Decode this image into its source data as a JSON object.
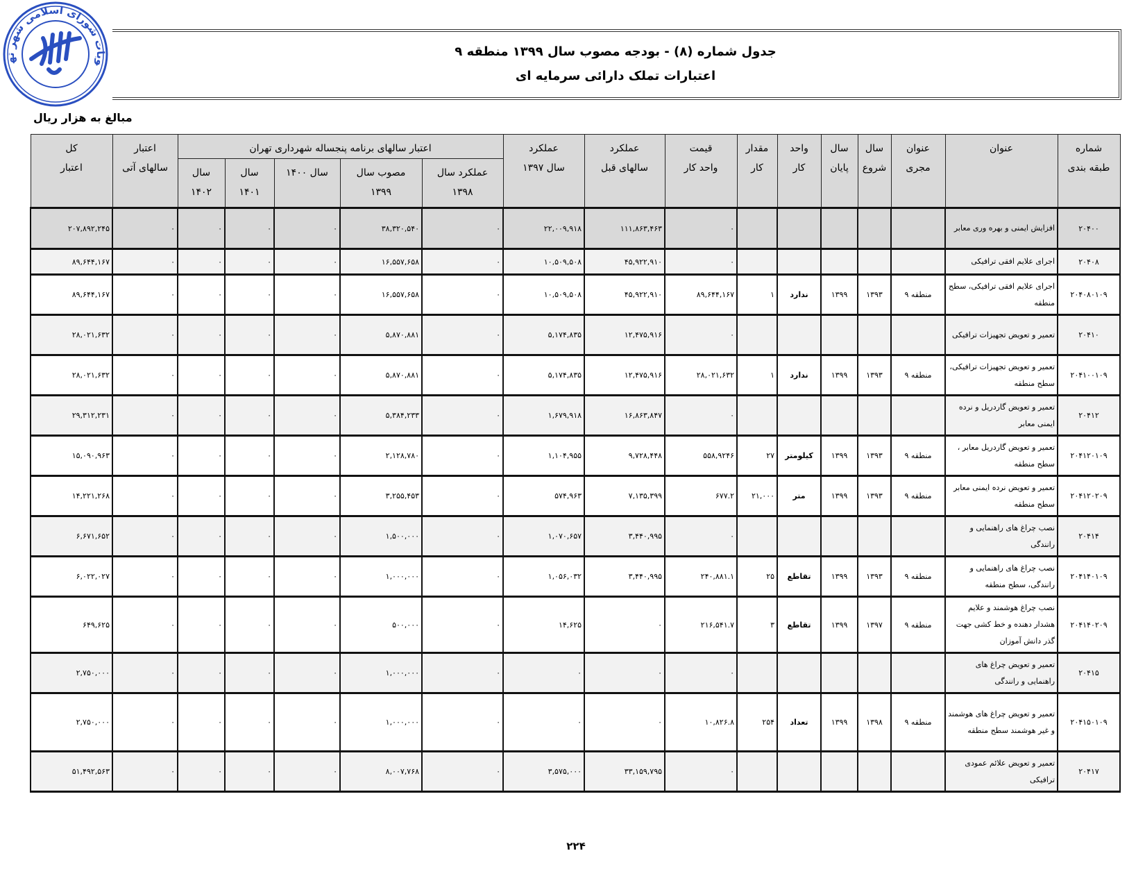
{
  "seal": {
    "text": "مصوبات شورای اسلامی شهر تهران",
    "color": "#2a4fc0"
  },
  "header": {
    "title": "جدول شماره (۸) - بودجه مصوب سال ۱۳۹۹ منطقه ۹",
    "subtitle": "اعتبارات تملک دارائی سرمایه ای"
  },
  "unit_note": "مبالغ به هزار ریال",
  "table": {
    "columns": {
      "code": [
        "شماره",
        "طبقه بندی"
      ],
      "title": [
        "",
        "عنوان"
      ],
      "executor": [
        "عنوان",
        "مجری"
      ],
      "start": [
        "سال",
        "شروع"
      ],
      "end": [
        "سال",
        "پایان"
      ],
      "unit": [
        "واحد",
        "کار"
      ],
      "qty": [
        "مقدار",
        "کار"
      ],
      "unit_price": [
        "قیمت",
        "واحد کار"
      ],
      "prev_years": [
        "عملکرد",
        "سالهای قبل"
      ],
      "y1397": [
        "عملکرد",
        "سال ۱۳۹۷"
      ],
      "plan_group": "اعتبار سالهای برنامه پنجساله شهرداری تهران",
      "y1398": [
        "عملکرد سال",
        "۱۳۹۸"
      ],
      "y1399": [
        "مصوب سال",
        "۱۳۹۹"
      ],
      "y1400": [
        "سال ۱۴۰۰",
        ""
      ],
      "y1401": [
        "سال",
        "۱۴۰۱"
      ],
      "y1402": [
        "سال",
        "۱۴۰۲"
      ],
      "future": [
        "اعتبار",
        "سالهای آتی"
      ],
      "total": [
        "کل",
        "اعتبار"
      ]
    },
    "rows": [
      {
        "level": "category",
        "code": "۲۰۴۰۰",
        "title": "افزایش ایمنی و بهره وری معابر",
        "executor": "",
        "start": "",
        "end": "",
        "unit": "",
        "qty": "",
        "unit_price": "۰",
        "prev_years": "۱۱۱,۸۶۳,۴۶۳",
        "y1397": "۲۲,۰۰۹,۹۱۸",
        "y1398": "۰",
        "y1399": "۳۸,۳۲۰,۵۴۰",
        "y1400": "۰",
        "y1401": "۰",
        "y1402": "۰",
        "future": "۰",
        "total": "۲۰۷,۸۹۲,۲۴۵"
      },
      {
        "level": "subcategory",
        "code": "۲۰۴۰۸",
        "title": "اجرای علایم افقی ترافیکی",
        "executor": "",
        "start": "",
        "end": "",
        "unit": "",
        "qty": "",
        "unit_price": "۰",
        "prev_years": "۴۵,۹۲۲,۹۱۰",
        "y1397": "۱۰,۵۰۹,۵۰۸",
        "y1398": "۰",
        "y1399": "۱۶,۵۵۷,۶۵۸",
        "y1400": "۰",
        "y1401": "۰",
        "y1402": "۰",
        "future": "۰",
        "total": "۸۹,۶۴۴,۱۶۷"
      },
      {
        "level": "item",
        "code": "۲۰۴۰۸۰۱۰۹",
        "title": "اجرای علایم افقی ترافیکی، سطح منطقه",
        "executor": "منطقه ۹",
        "start": "۱۳۹۳",
        "end": "۱۳۹۹",
        "unit": "ندارد",
        "qty": "۱",
        "unit_price": "۸۹,۶۴۴,۱۶۷",
        "prev_years": "۴۵,۹۲۲,۹۱۰",
        "y1397": "۱۰,۵۰۹,۵۰۸",
        "y1398": "۰",
        "y1399": "۱۶,۵۵۷,۶۵۸",
        "y1400": "۰",
        "y1401": "۰",
        "y1402": "۰",
        "future": "۰",
        "total": "۸۹,۶۴۴,۱۶۷"
      },
      {
        "level": "subcategory",
        "code": "۲۰۴۱۰",
        "title": "تعمیر و تعویض تجهیزات ترافیکی",
        "executor": "",
        "start": "",
        "end": "",
        "unit": "",
        "qty": "",
        "unit_price": "۰",
        "prev_years": "۱۲,۴۷۵,۹۱۶",
        "y1397": "۵,۱۷۴,۸۳۵",
        "y1398": "۰",
        "y1399": "۵,۸۷۰,۸۸۱",
        "y1400": "۰",
        "y1401": "۰",
        "y1402": "۰",
        "future": "۰",
        "total": "۲۸,۰۲۱,۶۳۲"
      },
      {
        "level": "item",
        "code": "۲۰۴۱۰۰۱۰۹",
        "title": "تعمیر و تعویض تجهیزات ترافیکی، سطح منطقه",
        "executor": "منطقه ۹",
        "start": "۱۳۹۳",
        "end": "۱۳۹۹",
        "unit": "ندارد",
        "qty": "۱",
        "unit_price": "۲۸,۰۲۱,۶۳۲",
        "prev_years": "۱۲,۴۷۵,۹۱۶",
        "y1397": "۵,۱۷۴,۸۳۵",
        "y1398": "۰",
        "y1399": "۵,۸۷۰,۸۸۱",
        "y1400": "۰",
        "y1401": "۰",
        "y1402": "۰",
        "future": "۰",
        "total": "۲۸,۰۲۱,۶۳۲"
      },
      {
        "level": "subcategory",
        "code": "۲۰۴۱۲",
        "title": "تعمیر و تعویض گاردریل و نرده ایمنی معابر",
        "executor": "",
        "start": "",
        "end": "",
        "unit": "",
        "qty": "",
        "unit_price": "۰",
        "prev_years": "۱۶,۸۶۳,۸۴۷",
        "y1397": "۱,۶۷۹,۹۱۸",
        "y1398": "۰",
        "y1399": "۵,۳۸۴,۲۳۳",
        "y1400": "۰",
        "y1401": "۰",
        "y1402": "۰",
        "future": "۰",
        "total": "۲۹,۳۱۲,۲۳۱"
      },
      {
        "level": "item",
        "code": "۲۰۴۱۲۰۱۰۹",
        "title": "تعمیر و تعویض گاردریل معابر ، سطح منطقه",
        "executor": "منطقه ۹",
        "start": "۱۳۹۳",
        "end": "۱۳۹۹",
        "unit": "کیلومتر",
        "qty": "۲۷",
        "unit_price": "۵۵۸,۹۲۴۶",
        "prev_years": "۹,۷۲۸,۴۴۸",
        "y1397": "۱,۱۰۴,۹۵۵",
        "y1398": "۰",
        "y1399": "۲,۱۲۸,۷۸۰",
        "y1400": "۰",
        "y1401": "۰",
        "y1402": "۰",
        "future": "۰",
        "total": "۱۵,۰۹۰,۹۶۳"
      },
      {
        "level": "item",
        "code": "۲۰۴۱۲۰۲۰۹",
        "title": "تعمیر و تعویض نرده ایمنی معابر سطح منطقه",
        "executor": "منطقه ۹",
        "start": "۱۳۹۳",
        "end": "۱۳۹۹",
        "unit": "متر",
        "qty": "۲۱,۰۰۰",
        "unit_price": "۶۷۷.۲",
        "prev_years": "۷,۱۳۵,۳۹۹",
        "y1397": "۵۷۴,۹۶۳",
        "y1398": "۰",
        "y1399": "۳,۲۵۵,۴۵۳",
        "y1400": "۰",
        "y1401": "۰",
        "y1402": "۰",
        "future": "۰",
        "total": "۱۴,۲۲۱,۲۶۸"
      },
      {
        "level": "subcategory",
        "code": "۲۰۴۱۴",
        "title": "نصب چراغ های راهنمایی و رانندگی",
        "executor": "",
        "start": "",
        "end": "",
        "unit": "",
        "qty": "",
        "unit_price": "۰",
        "prev_years": "۳,۴۴۰,۹۹۵",
        "y1397": "۱,۰۷۰,۶۵۷",
        "y1398": "۰",
        "y1399": "۱,۵۰۰,۰۰۰",
        "y1400": "۰",
        "y1401": "۰",
        "y1402": "۰",
        "future": "۰",
        "total": "۶,۶۷۱,۶۵۲"
      },
      {
        "level": "item",
        "code": "۲۰۴۱۴۰۱۰۹",
        "title": "نصب چراغ های راهنمایی و رانندگی، سطح منطقه",
        "executor": "منطقه ۹",
        "start": "۱۳۹۳",
        "end": "۱۳۹۹",
        "unit": "تقاطع",
        "qty": "۲۵",
        "unit_price": "۲۴۰,۸۸۱.۱",
        "prev_years": "۳,۴۴۰,۹۹۵",
        "y1397": "۱,۰۵۶,۰۳۲",
        "y1398": "۰",
        "y1399": "۱,۰۰۰,۰۰۰",
        "y1400": "۰",
        "y1401": "۰",
        "y1402": "۰",
        "future": "۰",
        "total": "۶,۰۲۲,۰۲۷"
      },
      {
        "level": "item",
        "code": "۲۰۴۱۴۰۲۰۹",
        "title": "نصب چراغ هوشمند و علایم هشدار دهنده و خط کشی جهت گذر دانش آموزان",
        "executor": "منطقه ۹",
        "start": "۱۳۹۷",
        "end": "۱۳۹۹",
        "unit": "تقاطع",
        "qty": "۳",
        "unit_price": "۲۱۶,۵۴۱.۷",
        "prev_years": "۰",
        "y1397": "۱۴,۶۲۵",
        "y1398": "۰",
        "y1399": "۵۰۰,۰۰۰",
        "y1400": "۰",
        "y1401": "۰",
        "y1402": "۰",
        "future": "۰",
        "total": "۶۴۹,۶۲۵"
      },
      {
        "level": "subcategory",
        "code": "۲۰۴۱۵",
        "title": "تعمیر و تعویض چراغ های راهنمایی و رانندگی",
        "executor": "",
        "start": "",
        "end": "",
        "unit": "",
        "qty": "",
        "unit_price": "۰",
        "prev_years": "۰",
        "y1397": "۰",
        "y1398": "۰",
        "y1399": "۱,۰۰۰,۰۰۰",
        "y1400": "۰",
        "y1401": "۰",
        "y1402": "۰",
        "future": "۰",
        "total": "۲,۷۵۰,۰۰۰"
      },
      {
        "level": "item",
        "code": "۲۰۴۱۵۰۱۰۹",
        "title": "تعمیر و تعویض چراغ های هوشمند و غیر هوشمند سطح منطقه",
        "executor": "منطقه ۹",
        "start": "۱۳۹۸",
        "end": "۱۳۹۹",
        "unit": "تعداد",
        "qty": "۲۵۴",
        "unit_price": "۱۰,۸۲۶.۸",
        "prev_years": "۰",
        "y1397": "۰",
        "y1398": "۰",
        "y1399": "۱,۰۰۰,۰۰۰",
        "y1400": "۰",
        "y1401": "۰",
        "y1402": "۰",
        "future": "۰",
        "total": "۲,۷۵۰,۰۰۰"
      },
      {
        "level": "subcategory",
        "code": "۲۰۴۱۷",
        "title": "تعمیر و تعویض علائم عمودی ترافیکی",
        "executor": "",
        "start": "",
        "end": "",
        "unit": "",
        "qty": "",
        "unit_price": "۰",
        "prev_years": "۳۳,۱۵۹,۷۹۵",
        "y1397": "۳,۵۷۵,۰۰۰",
        "y1398": "۰",
        "y1399": "۸,۰۰۷,۷۶۸",
        "y1400": "۰",
        "y1401": "۰",
        "y1402": "۰",
        "future": "۰",
        "total": "۵۱,۴۹۲,۵۶۳"
      }
    ]
  },
  "page_number": "۲۲۴"
}
